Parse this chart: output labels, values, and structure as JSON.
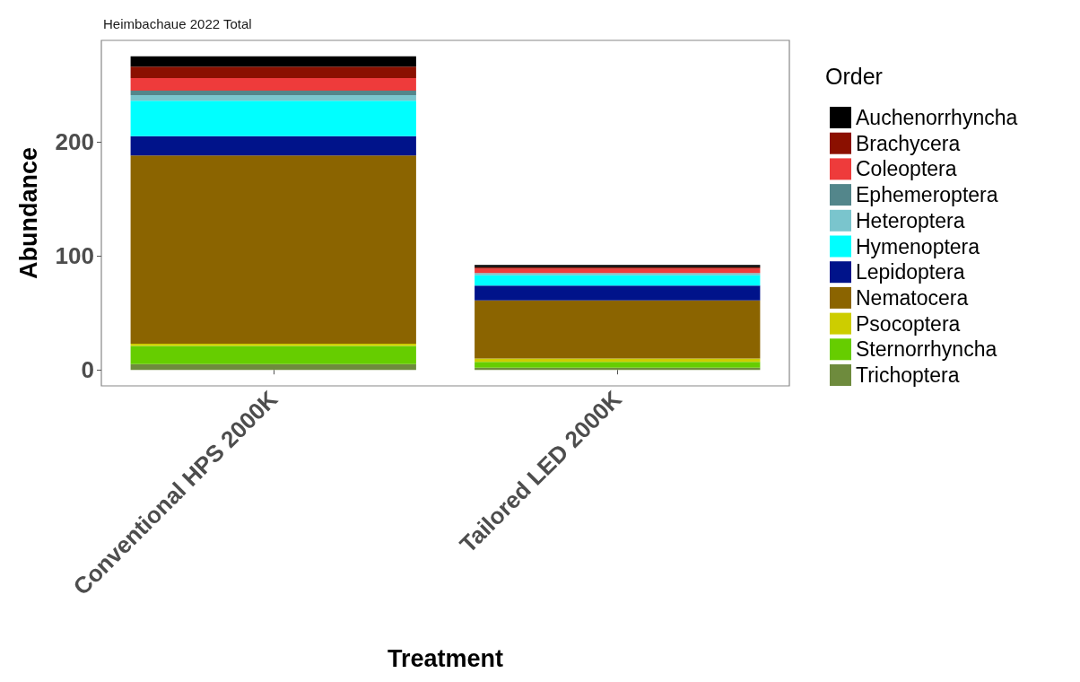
{
  "chart_data": {
    "type": "bar",
    "title": "Heimbachaue 2022 Total",
    "xlabel": "Treatment",
    "ylabel": "Abundance",
    "legend_title": "Order",
    "categories": [
      "Conventional HPS 2000K",
      "Tailored LED 2000K"
    ],
    "stacked": true,
    "series": [
      {
        "name": "Trichoptera",
        "color": "#6e8b3d",
        "values": [
          5,
          2
        ]
      },
      {
        "name": "Sternorrhyncha",
        "color": "#66cd00",
        "values": [
          16,
          5
        ]
      },
      {
        "name": "Psocoptera",
        "color": "#cdcd00",
        "values": [
          2,
          3
        ]
      },
      {
        "name": "Nematocera",
        "color": "#8b6400",
        "values": [
          165,
          51
        ]
      },
      {
        "name": "Lepidoptera",
        "color": "#00138a",
        "values": [
          17,
          13
        ]
      },
      {
        "name": "Hymenoptera",
        "color": "#00ffff",
        "values": [
          31,
          9
        ]
      },
      {
        "name": "Heteroptera",
        "color": "#7ac5cd",
        "values": [
          5,
          2
        ]
      },
      {
        "name": "Ephemeroptera",
        "color": "#53868b",
        "values": [
          4,
          0
        ]
      },
      {
        "name": "Coleoptera",
        "color": "#ee3b3b",
        "values": [
          11,
          4
        ]
      },
      {
        "name": "Brachycera",
        "color": "#8b1000",
        "values": [
          10,
          1
        ]
      },
      {
        "name": "Auchenorrhyncha",
        "color": "#000000",
        "values": [
          9,
          2
        ]
      }
    ],
    "ylim": [
      -14,
      289
    ],
    "yticks": [
      0,
      100,
      200
    ],
    "grid": false,
    "legend": "right"
  }
}
